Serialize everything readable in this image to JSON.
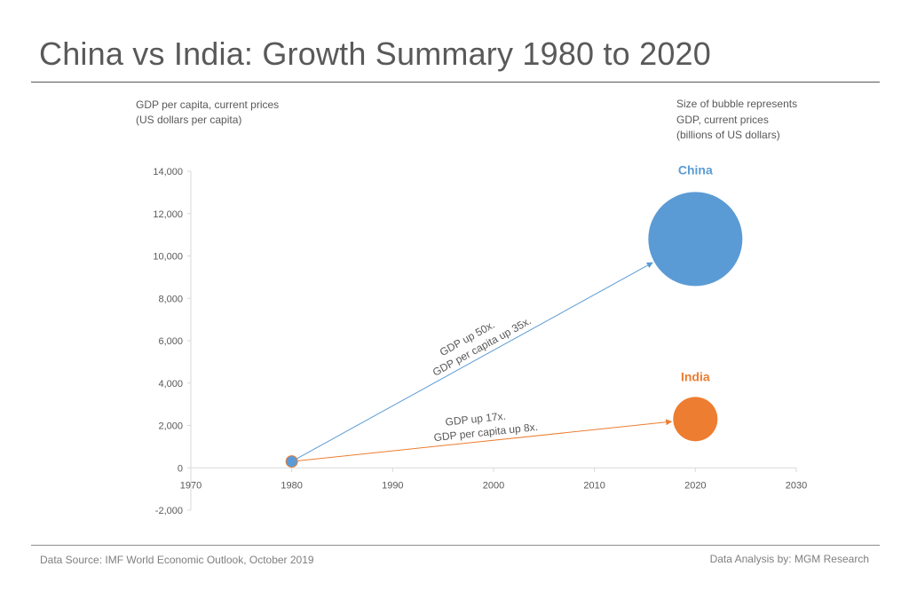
{
  "title": "China vs India: Growth Summary 1980 to 2020",
  "y_axis_title": [
    "GDP per capita, current prices",
    "(US dollars per capita)"
  ],
  "bubble_size_note": [
    "Size of bubble represents",
    "GDP, current prices",
    "(billions of US dollars)"
  ],
  "footer": {
    "source": "Data Source: IMF World Economic Outlook, October 2019",
    "analysis": "Data Analysis by: MGM Research"
  },
  "chart_data": {
    "type": "scatter",
    "subtype": "bubble",
    "title": "China vs India: Growth Summary 1980 to 2020",
    "xlabel": "",
    "ylabel": "GDP per capita, current prices (US dollars per capita)",
    "xlim": [
      1970,
      2030
    ],
    "ylim": [
      -2000,
      14000
    ],
    "x_ticks": [
      1970,
      1980,
      1990,
      2000,
      2010,
      2020,
      2030
    ],
    "y_ticks": [
      -2000,
      0,
      2000,
      4000,
      6000,
      8000,
      10000,
      12000,
      14000
    ],
    "x_tick_labels": [
      "1970",
      "1980",
      "1990",
      "2000",
      "2010",
      "2020",
      "2030"
    ],
    "y_tick_labels": [
      "-2,000",
      "0",
      "2,000",
      "4,000",
      "6,000",
      "8,000",
      "10,000",
      "12,000",
      "14,000"
    ],
    "grid": false,
    "series": [
      {
        "name": "China",
        "color": "#5b9bd5",
        "points": [
          {
            "x": 1980,
            "y": 300
          },
          {
            "x": 2020,
            "y": 10800
          }
        ],
        "annotation": [
          "GDP up 50x.",
          "GDP per capita up 35x."
        ]
      },
      {
        "name": "India",
        "color": "#ed7d31",
        "points": [
          {
            "x": 1980,
            "y": 300
          },
          {
            "x": 2020,
            "y": 2300
          }
        ],
        "annotation": [
          "GDP up 17x.",
          "GDP per capita up 8x."
        ]
      }
    ]
  }
}
